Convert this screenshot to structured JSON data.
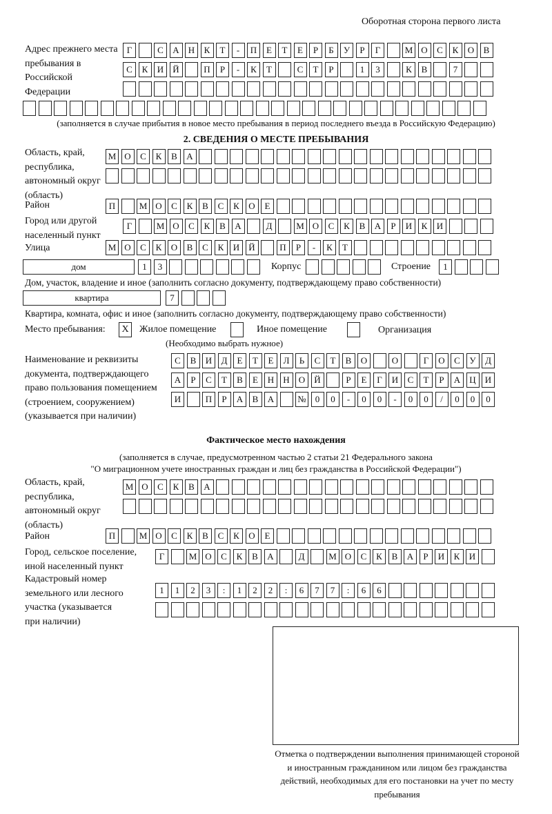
{
  "header": {
    "page_side": "Оборотная сторона первого листа"
  },
  "previous_address": {
    "label": "Адрес прежнего места пребывания в Российской Федерации",
    "rows": [
      "Г САНКТ-ПЕТЕРБУРГ МОСКОВ",
      "СКИЙ ПР-КТ СТР 13 КВ 7",
      "",
      ""
    ],
    "note": "(заполняется в случае прибытия в новое место пребывания в период последнего въезда в Российскую Федерацию)"
  },
  "section2": {
    "title": "2. СВЕДЕНИЯ О МЕСТЕ ПРЕБЫВАНИЯ",
    "region_label": "Область, край, республика, автономный округ (область)",
    "region_rows": [
      "МОСКВА",
      ""
    ],
    "district_label": "Район",
    "district": "П МОСКВСКОЕ",
    "city_label": "Город или другой населенный пункт",
    "city": "Г МОСКВА Д МОСКВАРИКИ",
    "street_label": "Улица",
    "street": "МОСКОВСКИЙ ПР-КТ",
    "house_type": "дом",
    "house_number": "13",
    "korpus_label": "Корпус",
    "korpus": "",
    "building_label": "Строение",
    "building": "1",
    "house_note": "Дом, участок, владение и иное (заполнить согласно документу, подтверждающему право собственности)",
    "apartment_type": "квартира",
    "apartment_number": "7",
    "apartment_note": "Квартира, комната, офис и иное (заполнить согласно документу, подтверждающему право собственности)",
    "stay_place_label": "Место пребывания:",
    "options": [
      {
        "label": "Жилое помещение",
        "checked": true,
        "mark": "X"
      },
      {
        "label": "Иное помещение",
        "checked": false,
        "mark": ""
      },
      {
        "label": "Организация",
        "checked": false,
        "mark": ""
      }
    ],
    "choose_note": "(Необходимо выбрать нужное)",
    "doc_label": "Наименование и реквизиты документа, подтверждающего право пользования помещением (строением, сооружением) (указывается при наличии)",
    "doc_rows": [
      "СВИДЕТЕЛЬСТВО О ГОСУД",
      "АРСТВЕННОЙ РЕГИСТРАЦИ",
      "И ПРАВА №00-00-00/000"
    ]
  },
  "actual_location": {
    "title": "Фактическое место нахождения",
    "note_line1": "(заполняется в случае, предусмотренном частью 2 статьи 21 Федерального закона",
    "note_line2": "\"О миграционном учете иностранных граждан и лиц без гражданства в Российской Федерации\")",
    "region_label": "Область, край, республика, автономный округ (область)",
    "region_rows": [
      "МОСКВА",
      ""
    ],
    "district_label": "Район",
    "district": "П МОСКВСКОЕ",
    "city_label": "Город, сельское поселение, иной населенный пункт",
    "city": "Г МОСКВА Д МОСКВАРИКИ",
    "cadastral_label": "Кадастровый номер земельного или лесного участка (указывается при наличии)",
    "cadastral_rows": [
      "1123:122:677:66",
      ""
    ]
  },
  "confirmation": {
    "caption": "Отметка о подтверждении выполнения принимающей стороной и иностранным гражданином или лицом без гражданства действий, необходимых для его постановки на учет по месту пребывания"
  }
}
